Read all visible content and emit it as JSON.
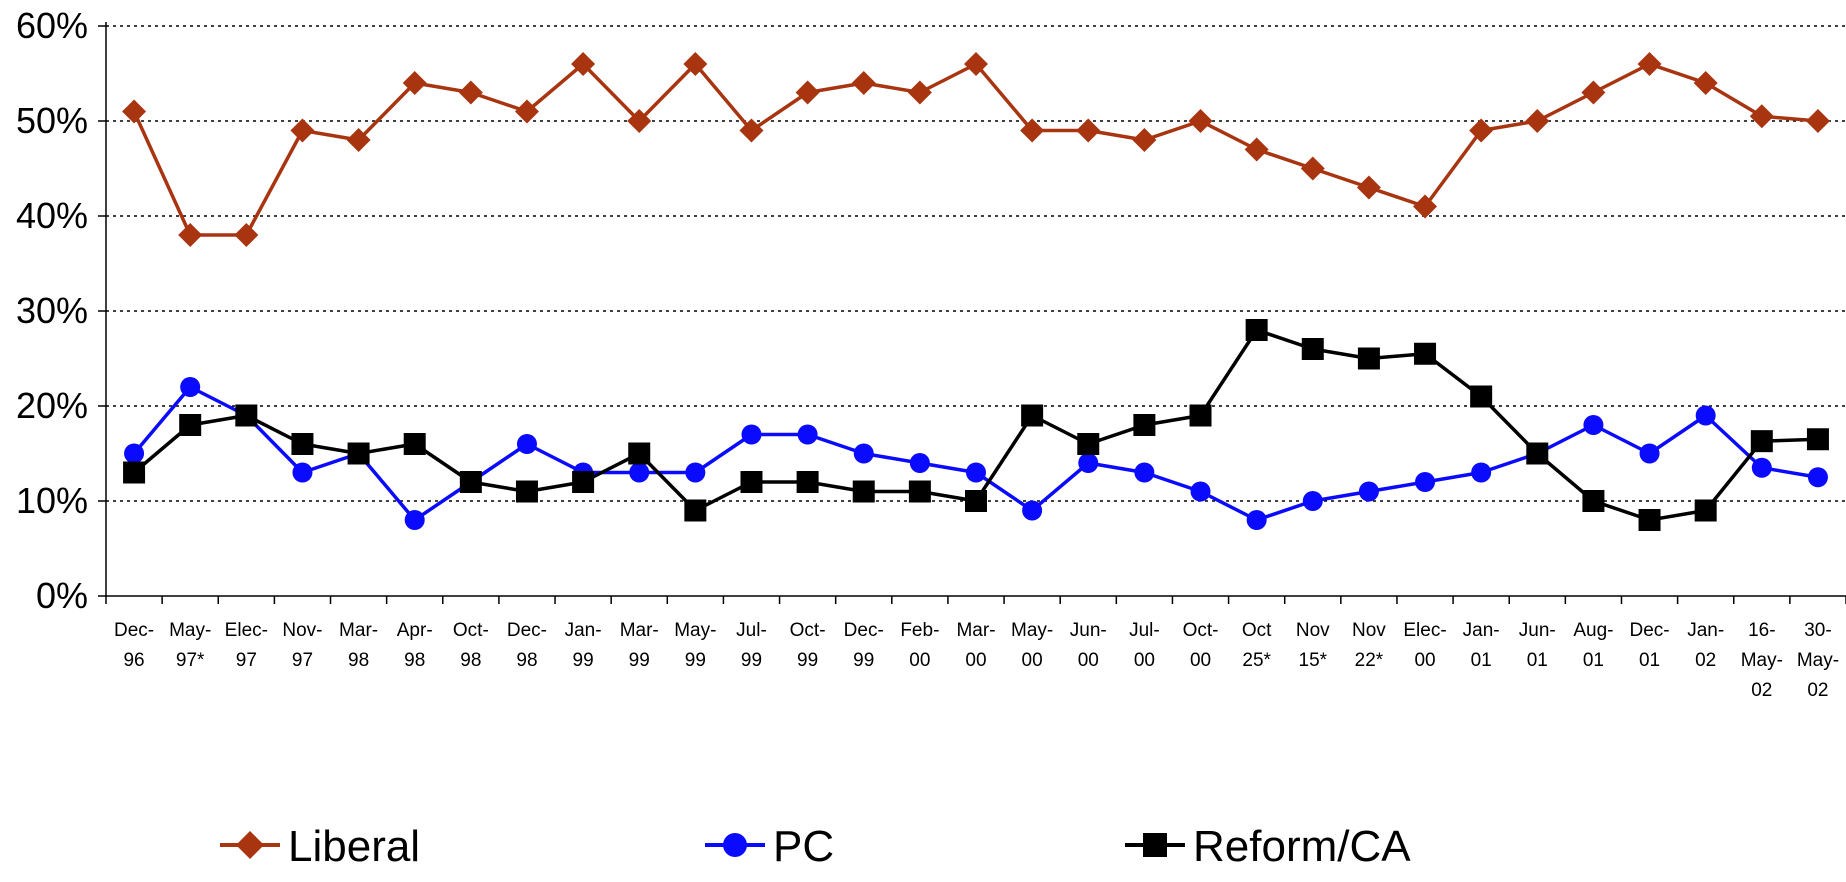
{
  "chart_data": {
    "type": "line",
    "title": "",
    "xlabel": "",
    "ylabel": "",
    "ylim": [
      0,
      60
    ],
    "y_ticks": [
      "0%",
      "10%",
      "20%",
      "30%",
      "40%",
      "50%",
      "60%"
    ],
    "y_tick_values": [
      0,
      10,
      20,
      30,
      40,
      50,
      60
    ],
    "grid": "horizontal dotted",
    "legend_position": "bottom",
    "categories": [
      [
        "Dec-",
        "96"
      ],
      [
        "May-",
        "97*"
      ],
      [
        "Elec-",
        "97"
      ],
      [
        "Nov-",
        "97"
      ],
      [
        "Mar-",
        "98"
      ],
      [
        "Apr-",
        "98"
      ],
      [
        "Oct-",
        "98"
      ],
      [
        "Dec-",
        "98"
      ],
      [
        "Jan-",
        "99"
      ],
      [
        "Mar-",
        "99"
      ],
      [
        "May-",
        "99"
      ],
      [
        "Jul-",
        "99"
      ],
      [
        "Oct-",
        "99"
      ],
      [
        "Dec-",
        "99"
      ],
      [
        "Feb-",
        "00"
      ],
      [
        "Mar-",
        "00"
      ],
      [
        "May-",
        "00"
      ],
      [
        "Jun-",
        "00"
      ],
      [
        "Jul-",
        "00"
      ],
      [
        "Oct-",
        "00"
      ],
      [
        "Oct",
        "25*"
      ],
      [
        "Nov",
        "15*"
      ],
      [
        "Nov",
        "22*"
      ],
      [
        "Elec-",
        "00"
      ],
      [
        "Jan-",
        "01"
      ],
      [
        "Jun-",
        "01"
      ],
      [
        "Aug-",
        "01"
      ],
      [
        "Dec-",
        "01"
      ],
      [
        "Jan-",
        "02"
      ],
      [
        "16-",
        "May-",
        "02"
      ],
      [
        "30-",
        "May-",
        "02"
      ]
    ],
    "series": [
      {
        "name": "Liberal",
        "color": "#a83510",
        "marker": "diamond",
        "values": [
          51,
          38,
          38,
          49,
          48,
          54,
          53,
          51,
          56,
          50,
          56,
          49,
          53,
          54,
          53,
          56,
          49,
          49,
          48,
          50,
          47,
          45,
          43,
          41,
          49,
          50,
          53,
          56,
          54,
          50.5,
          50
        ]
      },
      {
        "name": "PC",
        "color": "#0a0aff",
        "marker": "circle",
        "values": [
          15,
          22,
          19,
          13,
          15,
          8,
          12,
          16,
          13,
          13,
          13,
          17,
          17,
          15,
          14,
          13,
          9,
          14,
          13,
          11,
          8,
          10,
          11,
          12,
          13,
          15,
          18,
          15,
          19,
          13.5,
          12.5
        ]
      },
      {
        "name": "Reform/CA",
        "color": "#000000",
        "marker": "square",
        "values": [
          13,
          18,
          19,
          16,
          15,
          16,
          12,
          11,
          12,
          15,
          9,
          12,
          12,
          11,
          11,
          10,
          19,
          16,
          18,
          19,
          28,
          26,
          25,
          25.5,
          21,
          15,
          10,
          8,
          9,
          16.3,
          16.5
        ]
      }
    ]
  }
}
